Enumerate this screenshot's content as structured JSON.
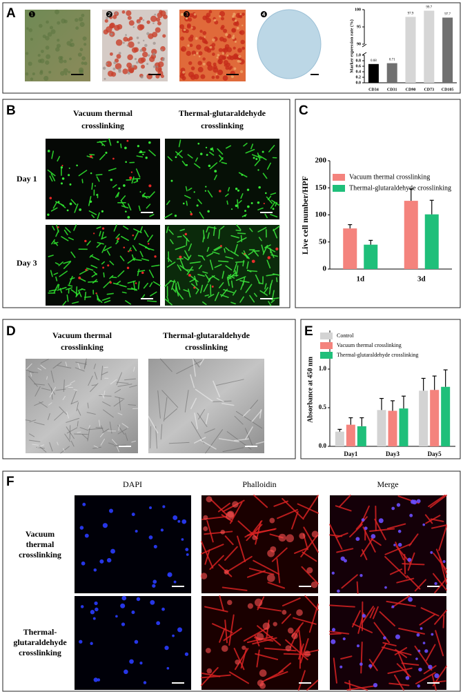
{
  "panel_labels": [
    "A",
    "B",
    "C",
    "D",
    "E",
    "F"
  ],
  "panel_a": {
    "image_labels": [
      "❶",
      "❷",
      "❸",
      "❹"
    ]
  },
  "panel_b": {
    "columns": [
      [
        "Vacuum thermal",
        "crosslinking"
      ],
      [
        "Thermal-glutaraldehyde",
        "crosslinking"
      ]
    ],
    "rows": [
      "Day 1",
      "Day 3"
    ]
  },
  "panel_d": {
    "columns": [
      [
        "Vacuum thermal",
        "crosslinking"
      ],
      [
        "Thermal-glutaraldehyde",
        "crosslinking"
      ]
    ]
  },
  "panel_f": {
    "columns": [
      "DAPI",
      "Phalloidin",
      "Merge"
    ],
    "column_colors": [
      "#2b4fd8",
      "#e02020",
      "#8a2bb0"
    ],
    "rows": [
      [
        "Vacuum",
        "thermal",
        "crosslinking"
      ],
      [
        "Thermal-",
        "glutaraldehyde",
        "crosslinking"
      ]
    ]
  },
  "chart_data": [
    {
      "type": "bar",
      "ylabel": "Marker expression rate (%)",
      "categories": [
        "CD34",
        "CD31",
        "CD90",
        "CD73",
        "CD105"
      ],
      "values": [
        0.68,
        0.71,
        97.9,
        99.7,
        97.7
      ],
      "colors": [
        "#000000",
        "#707070",
        "#d6d6d6",
        "#d6d6d6",
        "#707070"
      ],
      "show_values": true,
      "ylim": [
        0,
        100
      ],
      "ybreak": [
        1,
        90
      ],
      "yticks": [
        {
          "value": 0,
          "label": "0.0"
        },
        0.2,
        0.4,
        0.6,
        0.8,
        {
          "value": 1,
          "label": "1.0"
        },
        90,
        95,
        100
      ]
    },
    {
      "type": "bar",
      "ylabel": "Live cell number/HPF",
      "categories": [
        "1d",
        "3d"
      ],
      "series": [
        {
          "name": "Vacuum thermal crosslinking",
          "color": "#f4837d",
          "values": [
            75,
            126
          ],
          "errors": [
            7,
            22
          ]
        },
        {
          "name": "Thermal-glutaraldehyde crosslinking",
          "color": "#1fbf7a",
          "values": [
            45,
            101
          ],
          "errors": [
            8,
            26
          ]
        }
      ],
      "ylim": [
        0,
        200
      ],
      "yticks": [
        0,
        50,
        100,
        150,
        200
      ],
      "legend": "upper left"
    },
    {
      "type": "bar",
      "ylabel": "Absorbance at 450 nm",
      "categories": [
        "Day1",
        "Day3",
        "Day5"
      ],
      "series": [
        {
          "name": "Control",
          "color": "#d3d3d3",
          "values": [
            0.19,
            0.47,
            0.72
          ],
          "errors": [
            0.03,
            0.15,
            0.16
          ]
        },
        {
          "name": "Vacuum thermal crosslinking",
          "color": "#f4837d",
          "values": [
            0.28,
            0.46,
            0.73
          ],
          "errors": [
            0.09,
            0.13,
            0.18
          ]
        },
        {
          "name": "Thermal-glutaraldehyde crosslinking",
          "color": "#1fbf7a",
          "values": [
            0.26,
            0.49,
            0.77
          ],
          "errors": [
            0.11,
            0.16,
            0.22
          ]
        }
      ],
      "ylim": [
        0,
        1.5
      ],
      "yticks": [
        {
          "value": 0,
          "label": "0.0"
        },
        0.5,
        {
          "value": 1,
          "label": "1.0"
        }
      ],
      "legend": "upper left"
    }
  ]
}
